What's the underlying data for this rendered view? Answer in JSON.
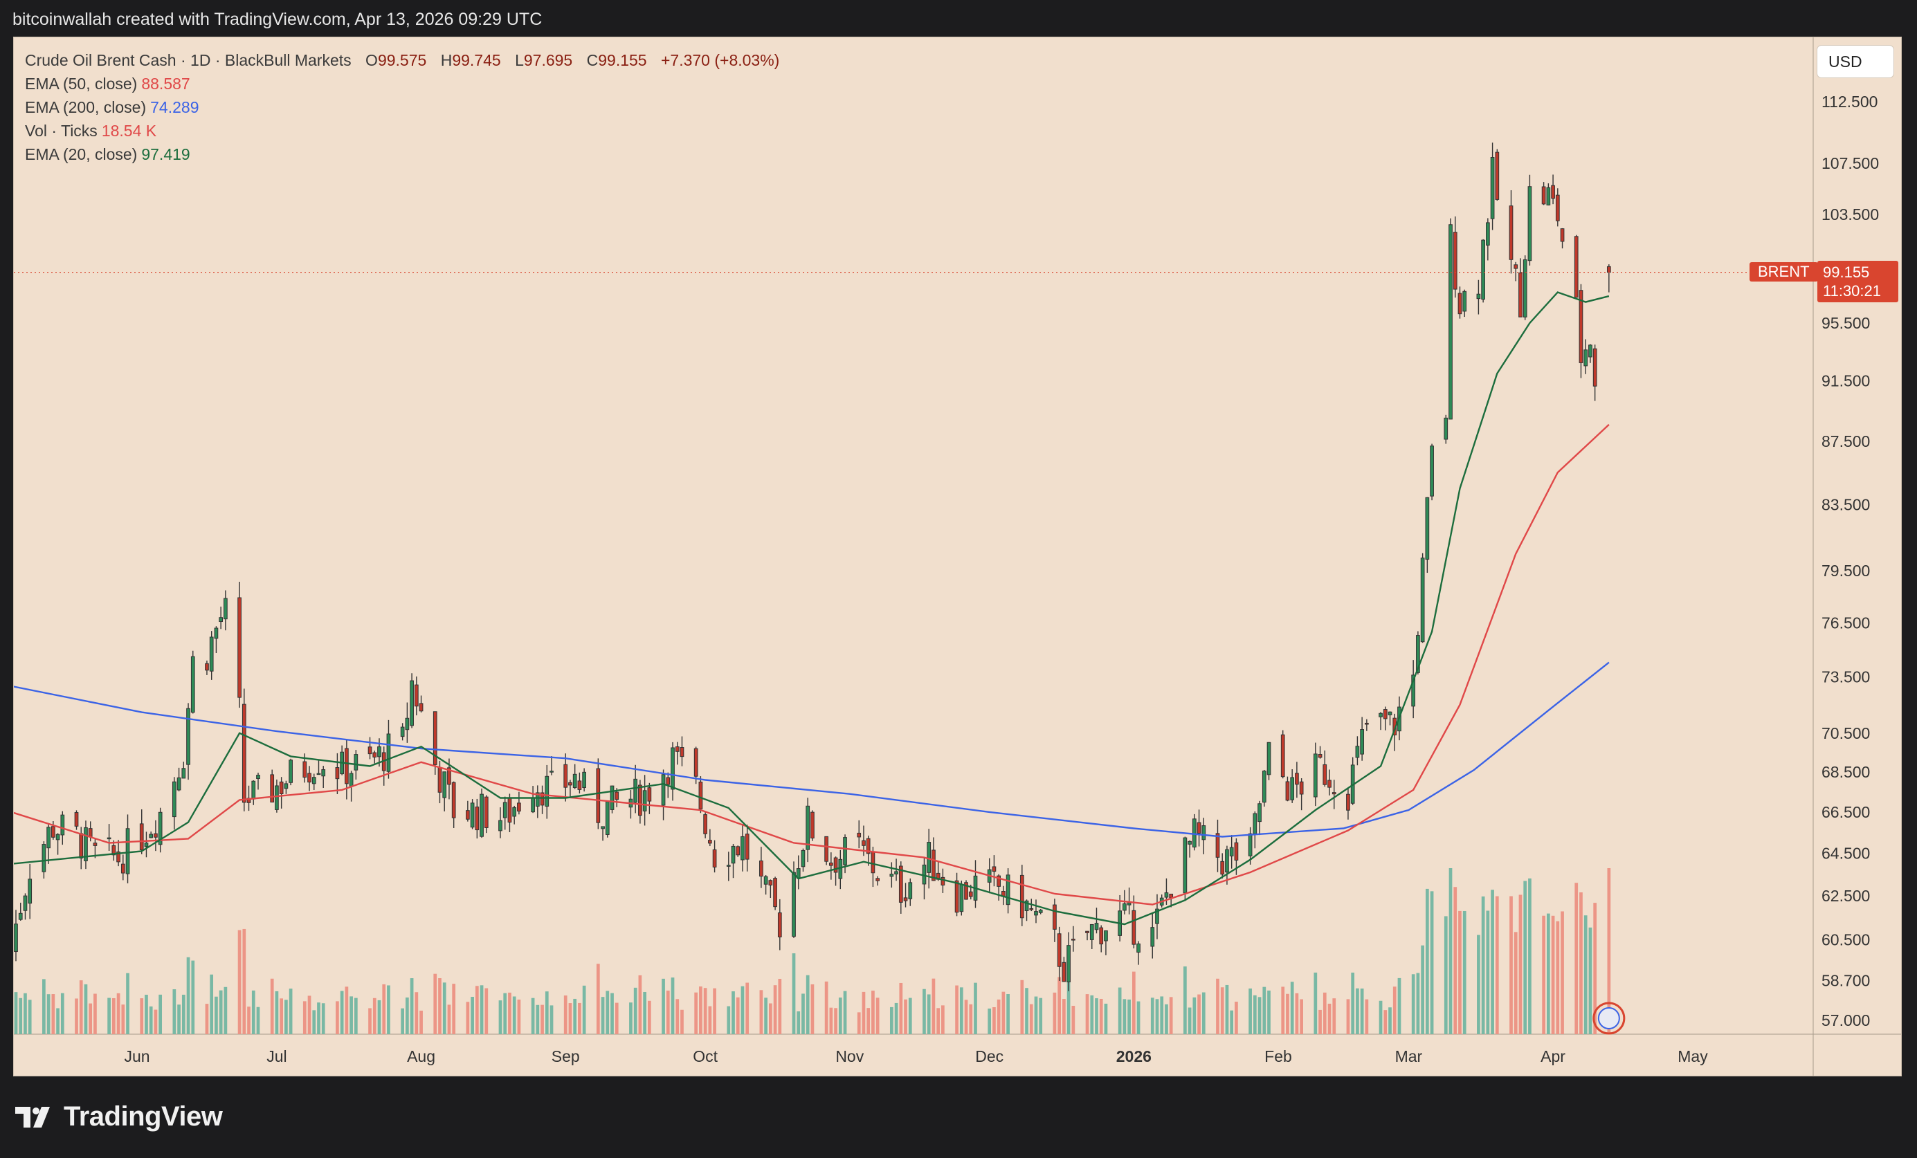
{
  "header": {
    "caption": "bitcoinwallah created with TradingView.com, Apr 13, 2026 09:29 UTC"
  },
  "legend": {
    "symbol": "Crude Oil Brent Cash · 1D · BlackBull Markets",
    "ohlc": [
      {
        "label": "O",
        "value": "99.575"
      },
      {
        "label": "H",
        "value": "99.745"
      },
      {
        "label": "L",
        "value": "97.695"
      },
      {
        "label": "C",
        "value": "99.155"
      }
    ],
    "change": "+7.370 (+8.03%)",
    "indicators": [
      {
        "name": "EMA (50, close)",
        "value": "88.587",
        "color": "#e04848"
      },
      {
        "name": "EMA (200, close)",
        "value": "74.289",
        "color": "#3b63e6"
      },
      {
        "name": "Vol · Ticks",
        "value": "18.54 K",
        "color": "#e04848"
      },
      {
        "name": "EMA (20, close)",
        "value": "97.419",
        "color": "#1c6d3d"
      }
    ]
  },
  "toolbar": {
    "currency": "USD"
  },
  "price_marker": {
    "symbol": "BRENT",
    "price": "99.155",
    "countdown": "11:30:21"
  },
  "brand": {
    "name": "TradingView"
  },
  "colors": {
    "background": "#f1dfcd",
    "up": "#2e8b57",
    "down": "#c0392b",
    "vol_up": "#79b8a4",
    "vol_down": "#ec9586",
    "ema20": "#1c6d3d",
    "ema50": "#e04848",
    "ema200": "#3b63e6"
  },
  "chart_data": {
    "type": "candlestick",
    "title": "Crude Oil Brent Cash · 1D · BlackBull Markets",
    "y_axis": {
      "scale": "log",
      "ticks": [
        "112.500",
        "107.500",
        "103.500",
        "95.500",
        "91.500",
        "87.500",
        "83.500",
        "79.500",
        "76.500",
        "73.500",
        "70.500",
        "68.500",
        "66.500",
        "64.500",
        "62.500",
        "60.500",
        "58.700",
        "57.000"
      ],
      "range": [
        56.5,
        114.5
      ]
    },
    "x_axis": {
      "ticks": [
        {
          "date": "2025-06-01",
          "label": "Jun"
        },
        {
          "date": "2025-07-01",
          "label": "Jul"
        },
        {
          "date": "2025-08-01",
          "label": "Aug"
        },
        {
          "date": "2025-09-01",
          "label": "Sep"
        },
        {
          "date": "2025-10-01",
          "label": "Oct"
        },
        {
          "date": "2025-11-01",
          "label": "Nov"
        },
        {
          "date": "2025-12-01",
          "label": "Dec"
        },
        {
          "date": "2026-01-01",
          "label": "2026"
        },
        {
          "date": "2026-02-01",
          "label": "Feb"
        },
        {
          "date": "2026-03-01",
          "label": "Mar"
        },
        {
          "date": "2026-04-01",
          "label": "Apr"
        },
        {
          "date": "2026-05-01",
          "label": "May"
        }
      ]
    },
    "closes": [
      [
        "2025-05-05",
        60.3
      ],
      [
        "2025-05-09",
        63.9
      ],
      [
        "2025-05-14",
        65.8
      ],
      [
        "2025-05-19",
        65.3
      ],
      [
        "2025-05-23",
        64.4
      ],
      [
        "2025-05-28",
        64.3
      ],
      [
        "2025-06-02",
        65.4
      ],
      [
        "2025-06-06",
        66.5
      ],
      [
        "2025-06-11",
        69.5
      ],
      [
        "2025-06-13",
        74.3
      ],
      [
        "2025-06-16",
        74.8
      ],
      [
        "2025-06-19",
        76.8
      ],
      [
        "2025-06-20",
        77.0
      ],
      [
        "2025-06-23",
        71.5
      ],
      [
        "2025-06-24",
        67.1
      ],
      [
        "2025-06-30",
        67.6
      ],
      [
        "2025-07-04",
        68.3
      ],
      [
        "2025-07-10",
        69.2
      ],
      [
        "2025-07-15",
        68.6
      ],
      [
        "2025-07-21",
        69.0
      ],
      [
        "2025-07-28",
        70.0
      ],
      [
        "2025-07-30",
        73.2
      ],
      [
        "2025-08-04",
        68.9
      ],
      [
        "2025-08-08",
        66.6
      ],
      [
        "2025-08-14",
        66.5
      ],
      [
        "2025-08-19",
        66.2
      ],
      [
        "2025-08-25",
        68.0
      ],
      [
        "2025-08-29",
        67.6
      ],
      [
        "2025-09-03",
        68.2
      ],
      [
        "2025-09-08",
        66.5
      ],
      [
        "2025-09-12",
        66.9
      ],
      [
        "2025-09-18",
        67.4
      ],
      [
        "2025-09-24",
        69.2
      ],
      [
        "2025-09-29",
        67.7
      ],
      [
        "2025-10-03",
        64.5
      ],
      [
        "2025-10-09",
        65.0
      ],
      [
        "2025-10-14",
        62.5
      ],
      [
        "2025-10-17",
        61.3
      ],
      [
        "2025-10-23",
        66.0
      ],
      [
        "2025-10-28",
        64.2
      ],
      [
        "2025-11-03",
        64.7
      ],
      [
        "2025-11-07",
        63.6
      ],
      [
        "2025-11-12",
        62.8
      ],
      [
        "2025-11-18",
        64.2
      ],
      [
        "2025-11-24",
        62.6
      ],
      [
        "2025-11-28",
        63.0
      ],
      [
        "2025-12-03",
        62.9
      ],
      [
        "2025-12-09",
        62.0
      ],
      [
        "2025-12-15",
        60.3
      ],
      [
        "2025-12-17",
        59.3
      ],
      [
        "2025-12-22",
        60.8
      ],
      [
        "2025-12-29",
        61.5
      ],
      [
        "2026-01-05",
        60.7
      ],
      [
        "2026-01-09",
        63.2
      ],
      [
        "2026-01-14",
        65.3
      ],
      [
        "2026-01-20",
        64.2
      ],
      [
        "2026-01-26",
        64.6
      ],
      [
        "2026-01-30",
        69.3
      ],
      [
        "2026-02-04",
        67.5
      ],
      [
        "2026-02-10",
        68.7
      ],
      [
        "2026-02-16",
        67.6
      ],
      [
        "2026-02-20",
        70.9
      ],
      [
        "2026-02-26",
        71.0
      ],
      [
        "2026-03-02",
        73.5
      ],
      [
        "2026-03-04",
        79.5
      ],
      [
        "2026-03-06",
        86.5
      ],
      [
        "2026-03-09",
        89.5
      ],
      [
        "2026-03-10",
        101.6
      ],
      [
        "2026-03-12",
        97.0
      ],
      [
        "2026-03-16",
        98.8
      ],
      [
        "2026-03-19",
        106.4
      ],
      [
        "2026-03-23",
        99.6
      ],
      [
        "2026-03-25",
        97.3
      ],
      [
        "2026-03-27",
        105.0
      ],
      [
        "2026-03-31",
        104.9
      ],
      [
        "2026-04-02",
        103.4
      ],
      [
        "2026-04-06",
        96.3
      ],
      [
        "2026-04-07",
        93.2
      ],
      [
        "2026-04-09",
        94.5
      ],
      [
        "2026-04-10",
        91.8
      ],
      [
        "2026-04-13",
        99.155
      ]
    ],
    "ema20": [
      [
        "2025-05-05",
        64.0
      ],
      [
        "2025-05-19",
        64.3
      ],
      [
        "2025-06-02",
        64.6
      ],
      [
        "2025-06-12",
        66.0
      ],
      [
        "2025-06-23",
        70.5
      ],
      [
        "2025-07-04",
        69.3
      ],
      [
        "2025-07-21",
        68.8
      ],
      [
        "2025-08-01",
        69.8
      ],
      [
        "2025-08-18",
        67.2
      ],
      [
        "2025-09-01",
        67.2
      ],
      [
        "2025-09-22",
        67.9
      ],
      [
        "2025-10-06",
        66.7
      ],
      [
        "2025-10-21",
        63.3
      ],
      [
        "2025-11-04",
        64.1
      ],
      [
        "2025-11-24",
        63.1
      ],
      [
        "2025-12-15",
        61.8
      ],
      [
        "2025-12-30",
        61.2
      ],
      [
        "2026-01-12",
        62.3
      ],
      [
        "2026-01-26",
        64.2
      ],
      [
        "2026-02-09",
        66.6
      ],
      [
        "2026-02-23",
        68.8
      ],
      [
        "2026-03-06",
        76.0
      ],
      [
        "2026-03-12",
        84.5
      ],
      [
        "2026-03-20",
        92.0
      ],
      [
        "2026-03-27",
        95.5
      ],
      [
        "2026-04-02",
        97.7
      ],
      [
        "2026-04-08",
        97.0
      ],
      [
        "2026-04-13",
        97.419
      ]
    ],
    "ema50": [
      [
        "2025-05-05",
        66.5
      ],
      [
        "2025-05-26",
        65.0
      ],
      [
        "2025-06-12",
        65.2
      ],
      [
        "2025-06-23",
        67.1
      ],
      [
        "2025-07-15",
        67.6
      ],
      [
        "2025-08-01",
        69.0
      ],
      [
        "2025-08-25",
        67.4
      ],
      [
        "2025-09-30",
        66.6
      ],
      [
        "2025-10-20",
        65.0
      ],
      [
        "2025-11-17",
        64.3
      ],
      [
        "2025-12-15",
        62.6
      ],
      [
        "2026-01-05",
        62.1
      ],
      [
        "2026-01-26",
        63.6
      ],
      [
        "2026-02-16",
        65.6
      ],
      [
        "2026-03-02",
        67.6
      ],
      [
        "2026-03-12",
        72.0
      ],
      [
        "2026-03-24",
        80.5
      ],
      [
        "2026-04-02",
        85.5
      ],
      [
        "2026-04-13",
        88.587
      ]
    ],
    "ema200": [
      [
        "2025-05-05",
        73.0
      ],
      [
        "2025-06-02",
        71.6
      ],
      [
        "2025-07-01",
        70.6
      ],
      [
        "2025-08-01",
        69.7
      ],
      [
        "2025-09-01",
        69.2
      ],
      [
        "2025-10-01",
        68.1
      ],
      [
        "2025-11-01",
        67.4
      ],
      [
        "2025-12-01",
        66.5
      ],
      [
        "2026-01-01",
        65.7
      ],
      [
        "2026-01-20",
        65.3
      ],
      [
        "2026-02-15",
        65.7
      ],
      [
        "2026-03-01",
        66.6
      ],
      [
        "2026-03-15",
        68.6
      ],
      [
        "2026-03-31",
        71.7
      ],
      [
        "2026-04-13",
        74.289
      ]
    ]
  }
}
